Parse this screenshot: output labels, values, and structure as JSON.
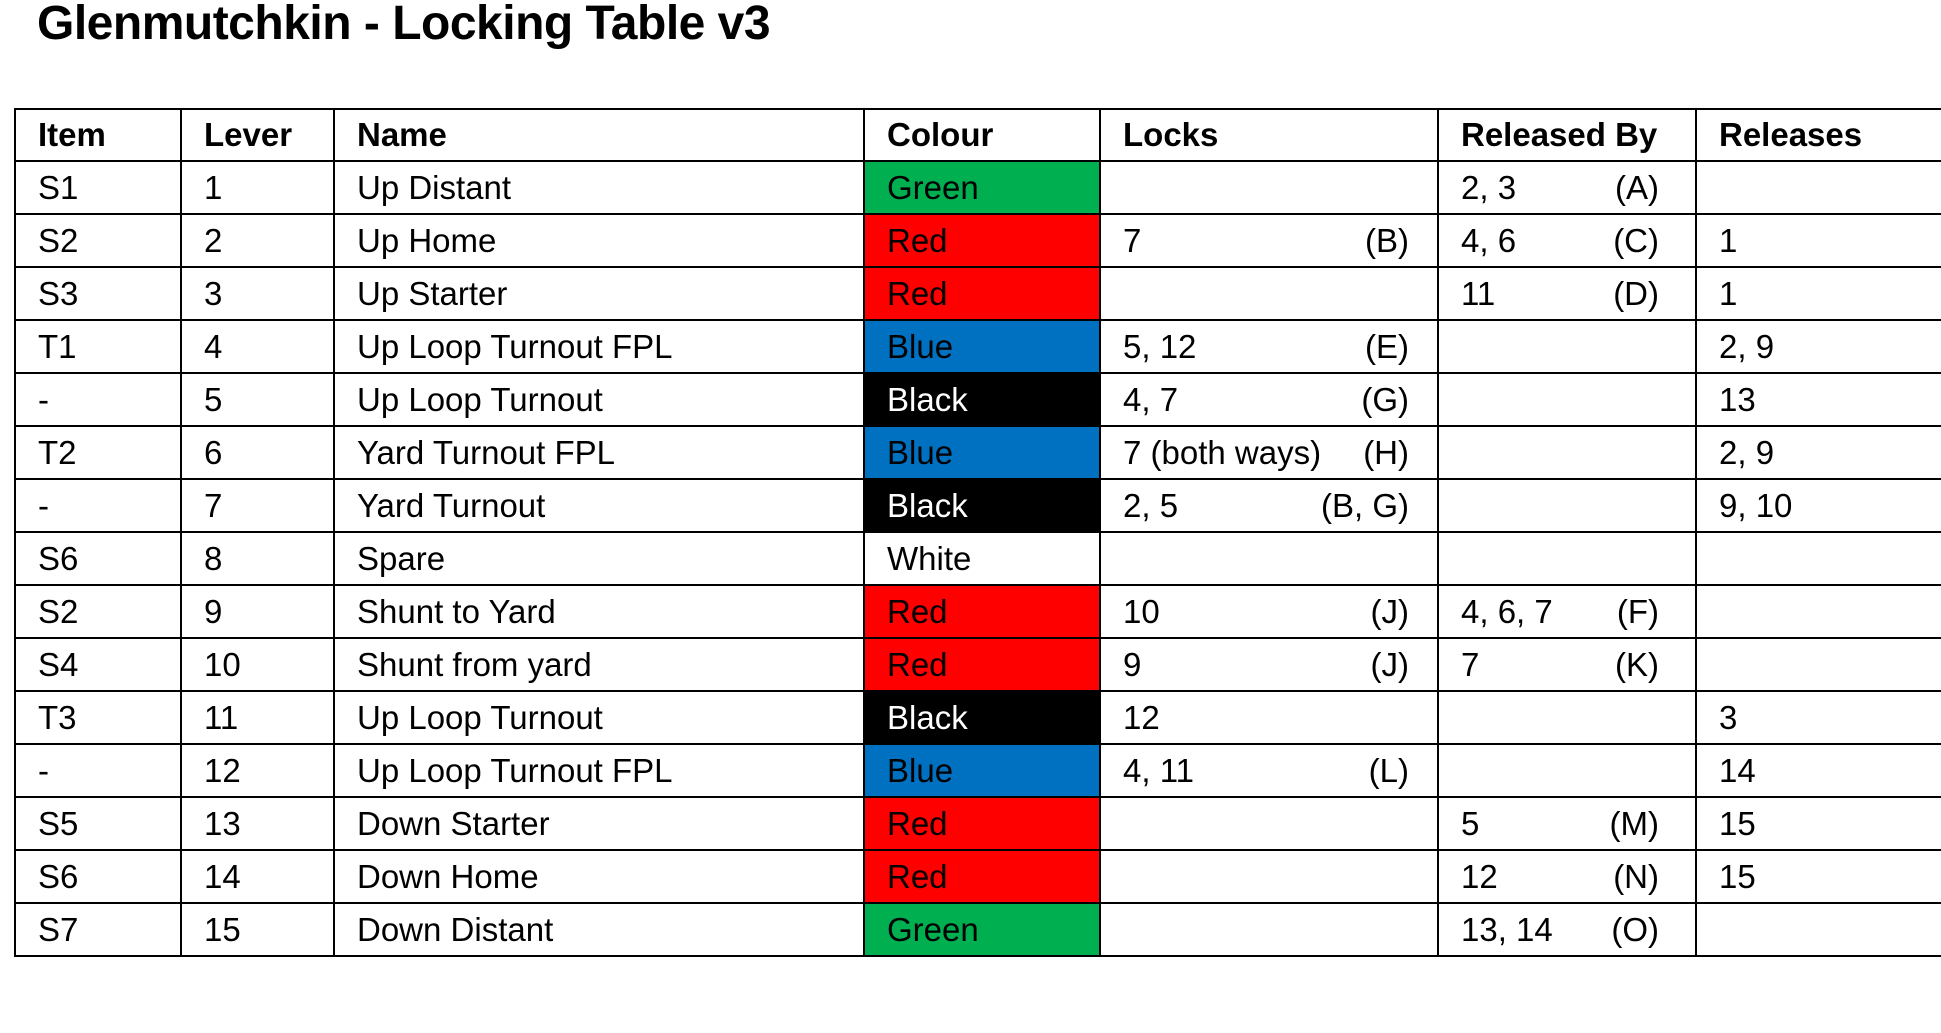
{
  "title": "Glenmutchkin - Locking Table v3",
  "colours": {
    "Green": "#00b050",
    "Red": "#ff0000",
    "Blue": "#0070c0",
    "Black": "#000000",
    "White": "#ffffff"
  },
  "columns": [
    "Item",
    "Lever",
    "Name",
    "Colour",
    "Locks",
    "Released By",
    "Releases"
  ],
  "rows": [
    {
      "item": "S1",
      "lever": "1",
      "name": "Up Distant",
      "colour": "Green",
      "locks": "",
      "locks_code": "",
      "released_by": "2, 3",
      "released_by_code": "(A)",
      "releases": ""
    },
    {
      "item": "S2",
      "lever": "2",
      "name": "Up Home",
      "colour": "Red",
      "locks": "7",
      "locks_code": "(B)",
      "released_by": "4, 6",
      "released_by_code": "(C)",
      "releases": "1"
    },
    {
      "item": "S3",
      "lever": "3",
      "name": "Up Starter",
      "colour": "Red",
      "locks": "",
      "locks_code": "",
      "released_by": "11",
      "released_by_code": "(D)",
      "releases": "1"
    },
    {
      "item": "T1",
      "lever": "4",
      "name": "Up Loop Turnout FPL",
      "colour": "Blue",
      "locks": "5, 12",
      "locks_code": "(E)",
      "released_by": "",
      "released_by_code": "",
      "releases": "2, 9"
    },
    {
      "item": "-",
      "lever": "5",
      "name": "Up Loop Turnout",
      "colour": "Black",
      "locks": "4, 7",
      "locks_code": "(G)",
      "released_by": "",
      "released_by_code": "",
      "releases": "13"
    },
    {
      "item": "T2",
      "lever": "6",
      "name": "Yard Turnout FPL",
      "colour": "Blue",
      "locks": "7 (both ways)",
      "locks_code": "(H)",
      "released_by": "",
      "released_by_code": "",
      "releases": "2, 9"
    },
    {
      "item": "-",
      "lever": "7",
      "name": "Yard Turnout",
      "colour": "Black",
      "locks": "2, 5",
      "locks_code": "(B, G)",
      "released_by": "",
      "released_by_code": "",
      "releases": "9, 10"
    },
    {
      "item": "S6",
      "lever": "8",
      "name": "Spare",
      "colour": "White",
      "locks": "",
      "locks_code": "",
      "released_by": "",
      "released_by_code": "",
      "releases": ""
    },
    {
      "item": "S2",
      "lever": "9",
      "name": "Shunt to Yard",
      "colour": "Red",
      "locks": "10",
      "locks_code": "(J)",
      "released_by": "4, 6, 7",
      "released_by_code": "(F)",
      "releases": ""
    },
    {
      "item": "S4",
      "lever": "10",
      "name": "Shunt from yard",
      "colour": "Red",
      "locks": "9",
      "locks_code": "(J)",
      "released_by": "7",
      "released_by_code": "(K)",
      "releases": ""
    },
    {
      "item": "T3",
      "lever": "11",
      "name": "Up Loop Turnout",
      "colour": "Black",
      "locks": "12",
      "locks_code": "",
      "released_by": "",
      "released_by_code": "",
      "releases": "3"
    },
    {
      "item": "-",
      "lever": "12",
      "name": "Up Loop Turnout FPL",
      "colour": "Blue",
      "locks": "4, 11",
      "locks_code": "(L)",
      "released_by": "",
      "released_by_code": "",
      "releases": "14"
    },
    {
      "item": "S5",
      "lever": "13",
      "name": "Down Starter",
      "colour": "Red",
      "locks": "",
      "locks_code": "",
      "released_by": "5",
      "released_by_code": "(M)",
      "releases": "15"
    },
    {
      "item": "S6",
      "lever": "14",
      "name": "Down Home",
      "colour": "Red",
      "locks": "",
      "locks_code": "",
      "released_by": "12",
      "released_by_code": "(N)",
      "releases": "15"
    },
    {
      "item": "S7",
      "lever": "15",
      "name": "Down Distant",
      "colour": "Green",
      "locks": "",
      "locks_code": "",
      "released_by": "13, 14",
      "released_by_code": "(O)",
      "releases": ""
    }
  ]
}
